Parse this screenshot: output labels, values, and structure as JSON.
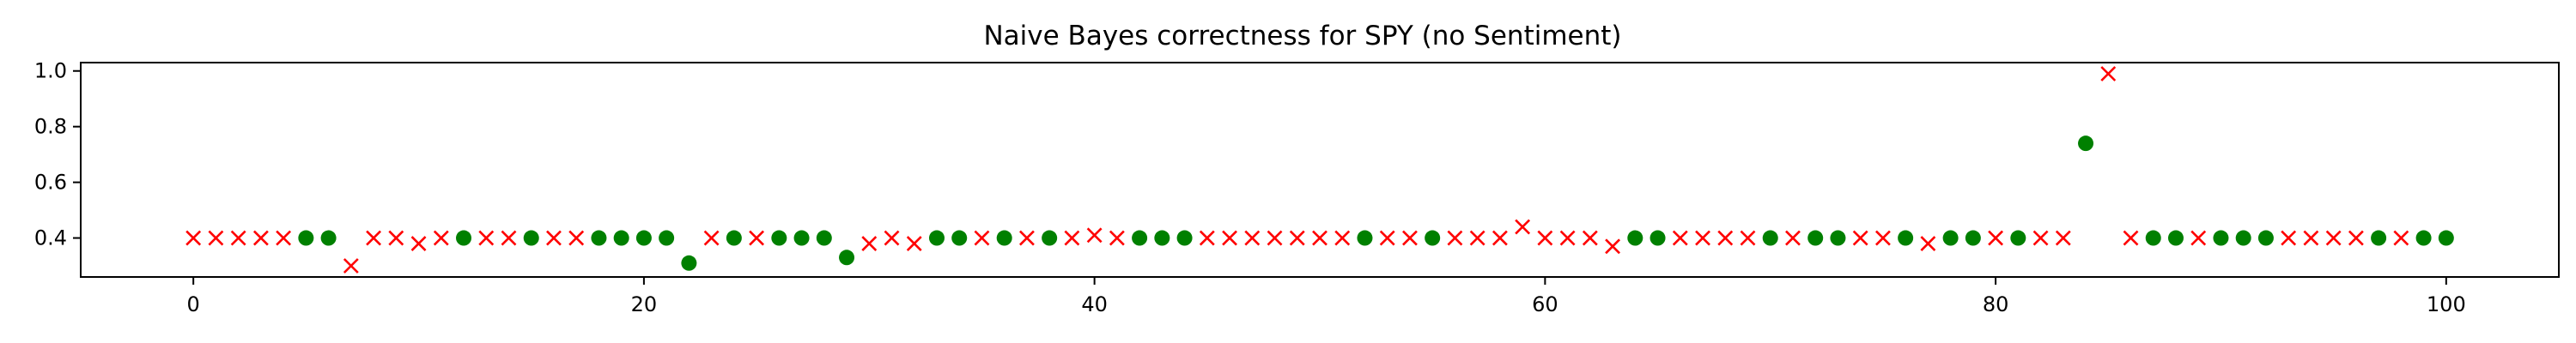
{
  "chart_data": {
    "type": "scatter",
    "title": "Naive Bayes correctness for SPY (no Sentiment)",
    "xlabel": "",
    "ylabel": "",
    "xlim": [
      -5,
      105
    ],
    "ylim": [
      0.26,
      1.03
    ],
    "xticks": [
      0,
      20,
      40,
      60,
      80,
      100
    ],
    "yticks": [
      0.4,
      0.6,
      0.8,
      1.0
    ],
    "xtick_labels": [
      "0",
      "20",
      "40",
      "60",
      "80",
      "100"
    ],
    "ytick_labels": [
      "0.4",
      "0.6",
      "0.8",
      "1.0"
    ],
    "grid": false,
    "legend": null,
    "series": [
      {
        "marker": "circle",
        "color": "#008000",
        "x": [
          5,
          6,
          12,
          15,
          18,
          19,
          20,
          21,
          22,
          24,
          26,
          27,
          28,
          29,
          33,
          34,
          36,
          38,
          42,
          43,
          44,
          52,
          55,
          64,
          65,
          70,
          72,
          73,
          76,
          78,
          79,
          81,
          84,
          87,
          88,
          90,
          91,
          92,
          97,
          99,
          100
        ],
        "y": [
          0.4,
          0.4,
          0.4,
          0.4,
          0.4,
          0.4,
          0.4,
          0.4,
          0.31,
          0.4,
          0.4,
          0.4,
          0.4,
          0.33,
          0.4,
          0.4,
          0.4,
          0.4,
          0.4,
          0.4,
          0.4,
          0.4,
          0.4,
          0.4,
          0.4,
          0.4,
          0.4,
          0.4,
          0.4,
          0.4,
          0.4,
          0.4,
          0.74,
          0.4,
          0.4,
          0.4,
          0.4,
          0.4,
          0.4,
          0.4,
          0.4
        ]
      },
      {
        "marker": "x",
        "color": "#ff0000",
        "x": [
          0,
          1,
          2,
          3,
          4,
          7,
          8,
          9,
          10,
          11,
          13,
          14,
          16,
          17,
          23,
          25,
          30,
          31,
          32,
          35,
          37,
          39,
          40,
          41,
          45,
          46,
          47,
          48,
          49,
          50,
          51,
          53,
          54,
          56,
          57,
          58,
          59,
          60,
          61,
          62,
          63,
          66,
          67,
          68,
          69,
          71,
          74,
          75,
          77,
          80,
          82,
          83,
          85,
          86,
          89,
          93,
          94,
          95,
          96,
          98
        ],
        "y": [
          0.4,
          0.4,
          0.4,
          0.4,
          0.4,
          0.3,
          0.4,
          0.4,
          0.38,
          0.4,
          0.4,
          0.4,
          0.4,
          0.4,
          0.4,
          0.4,
          0.38,
          0.4,
          0.38,
          0.4,
          0.4,
          0.4,
          0.41,
          0.4,
          0.4,
          0.4,
          0.4,
          0.4,
          0.4,
          0.4,
          0.4,
          0.4,
          0.4,
          0.4,
          0.4,
          0.4,
          0.44,
          0.4,
          0.4,
          0.4,
          0.37,
          0.4,
          0.4,
          0.4,
          0.4,
          0.4,
          0.4,
          0.4,
          0.38,
          0.4,
          0.4,
          0.4,
          0.99,
          0.4,
          0.4,
          0.4,
          0.4,
          0.4,
          0.4,
          0.4
        ]
      }
    ]
  }
}
